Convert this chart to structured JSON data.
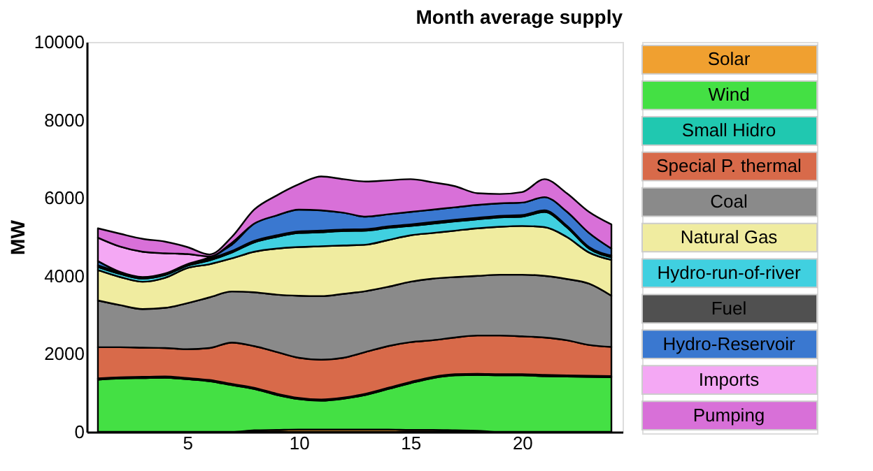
{
  "chart_data": {
    "type": "area",
    "stacked": true,
    "title": "Month average supply",
    "ylabel": "MW",
    "x": [
      1,
      2,
      3,
      4,
      5,
      6,
      7,
      8,
      9,
      10,
      11,
      12,
      13,
      14,
      15,
      16,
      17,
      18,
      19,
      20,
      21,
      22,
      23,
      24
    ],
    "xlim": [
      0.5,
      24.5
    ],
    "xticks": [
      5,
      10,
      15,
      20
    ],
    "ylim": [
      0,
      10000
    ],
    "yticks": [
      0,
      2000,
      4000,
      6000,
      8000,
      10000
    ],
    "grid": false,
    "legend": "right",
    "series": [
      {
        "name": "Solar",
        "color": "#f0a030",
        "values": [
          0,
          0,
          0,
          0,
          0,
          0,
          0,
          40,
          50,
          60,
          60,
          60,
          60,
          60,
          50,
          50,
          40,
          30,
          0,
          0,
          0,
          0,
          0,
          0
        ]
      },
      {
        "name": "Wind",
        "color": "#44e044",
        "values": [
          1340,
          1370,
          1380,
          1390,
          1350,
          1300,
          1200,
          1060,
          900,
          780,
          740,
          790,
          890,
          1040,
          1200,
          1330,
          1410,
          1430,
          1450,
          1450,
          1430,
          1420,
          1410,
          1400
        ]
      },
      {
        "name": "Small Hidro",
        "color": "#20c8b0",
        "values": [
          30,
          30,
          30,
          30,
          30,
          30,
          30,
          30,
          30,
          30,
          30,
          30,
          30,
          30,
          30,
          30,
          30,
          30,
          30,
          30,
          30,
          30,
          30,
          30
        ]
      },
      {
        "name": "Special P. thermal",
        "color": "#d86a4a",
        "values": [
          800,
          770,
          750,
          730,
          740,
          820,
          1060,
          1070,
          1070,
          1030,
          1020,
          1020,
          1070,
          1070,
          1020,
          940,
          940,
          980,
          990,
          970,
          960,
          900,
          790,
          750
        ]
      },
      {
        "name": "Coal",
        "color": "#8a8a8a",
        "values": [
          1200,
          1080,
          990,
          1030,
          1180,
          1300,
          1310,
          1380,
          1470,
          1590,
          1630,
          1640,
          1560,
          1520,
          1550,
          1580,
          1550,
          1530,
          1560,
          1580,
          1580,
          1570,
          1570,
          1310
        ]
      },
      {
        "name": "Natural Gas",
        "color": "#f0eca0",
        "values": [
          780,
          720,
          700,
          770,
          900,
          850,
          850,
          1040,
          1180,
          1250,
          1280,
          1240,
          1190,
          1200,
          1190,
          1170,
          1190,
          1220,
          1230,
          1250,
          1250,
          1080,
          800,
          920
        ]
      },
      {
        "name": "Hydro-run-of-river",
        "color": "#40d0e0",
        "values": [
          80,
          80,
          80,
          70,
          60,
          100,
          150,
          240,
          300,
          360,
          360,
          370,
          360,
          310,
          240,
          240,
          240,
          230,
          240,
          240,
          390,
          250,
          100,
          70
        ]
      },
      {
        "name": "Fuel",
        "color": "#505050",
        "values": [
          40,
          40,
          40,
          40,
          40,
          40,
          40,
          40,
          40,
          40,
          40,
          40,
          40,
          40,
          40,
          40,
          40,
          40,
          40,
          40,
          40,
          40,
          40,
          40
        ]
      },
      {
        "name": "Hydro-Reservoir",
        "color": "#3a78d0",
        "values": [
          110,
          10,
          0,
          0,
          0,
          40,
          160,
          440,
          510,
          560,
          520,
          430,
          320,
          310,
          320,
          320,
          320,
          330,
          320,
          320,
          340,
          360,
          360,
          180
        ]
      },
      {
        "name": "Imports",
        "color": "#f4a8f4",
        "values": [
          600,
          650,
          650,
          520,
          260,
          20,
          50,
          null,
          null,
          null,
          null,
          null,
          null,
          null,
          null,
          null,
          null,
          null,
          null,
          null,
          null,
          null,
          null,
          null
        ]
      },
      {
        "name": "Pumping",
        "color": "#d870d8",
        "values": [
          240,
          330,
          330,
          300,
          180,
          50,
          150,
          360,
          510,
          650,
          870,
          860,
          900,
          870,
          840,
          700,
          540,
          300,
          240,
          270,
          460,
          470,
          540,
          620
        ]
      }
    ]
  }
}
